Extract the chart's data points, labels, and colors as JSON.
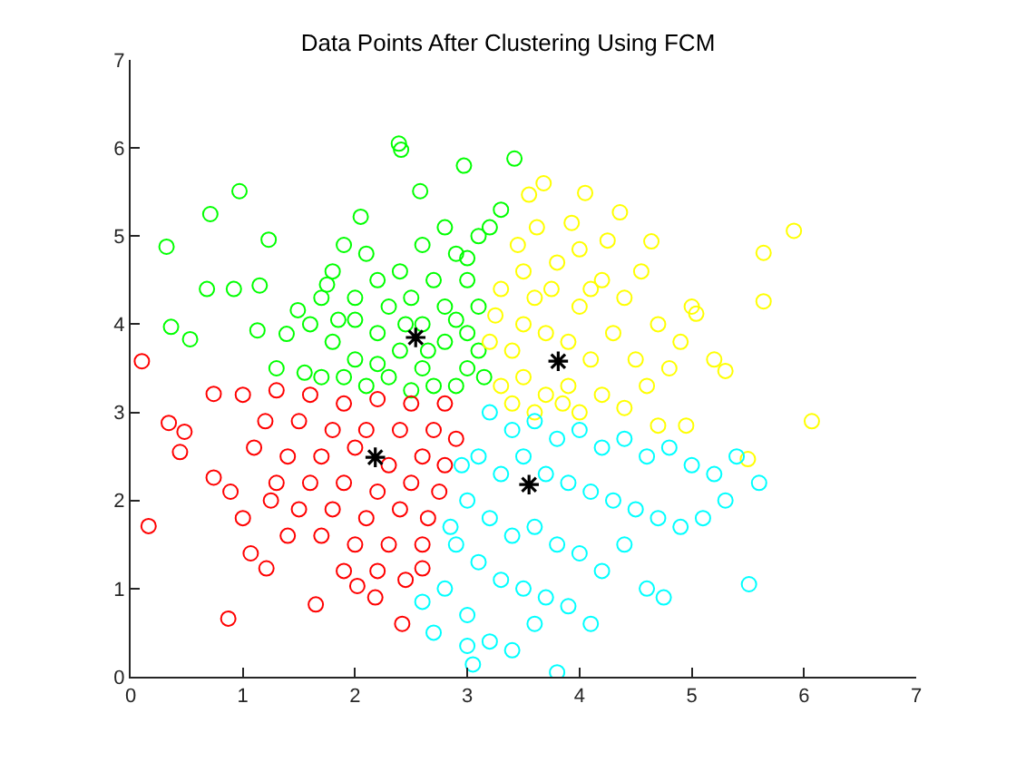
{
  "chart_data": {
    "type": "scatter",
    "title": "Data Points After Clustering Using FCM",
    "xlim": [
      0,
      7
    ],
    "ylim": [
      0,
      7
    ],
    "xticks": [
      0,
      1,
      2,
      3,
      4,
      5,
      6,
      7
    ],
    "yticks": [
      0,
      1,
      2,
      3,
      4,
      5,
      6,
      7
    ],
    "marker": "circle",
    "series": [
      {
        "color": "#00ff00",
        "x": [
          0.32,
          0.71,
          0.97,
          1.23,
          0.68,
          0.92,
          1.15,
          0.36,
          0.53,
          1.13,
          1.39,
          1.49,
          2.39,
          2.41,
          2.97,
          3.42,
          2.58,
          2.05,
          1.3,
          1.55,
          1.7,
          1.8,
          1.9,
          2.1,
          2.2,
          2.0,
          1.7,
          1.6,
          1.8,
          2.0,
          1.9,
          2.2,
          2.3,
          2.4,
          2.6,
          2.7,
          2.8,
          2.6,
          2.4,
          2.3,
          2.6,
          2.8,
          3.0,
          3.0,
          2.9,
          2.7,
          2.5,
          3.1,
          3.0,
          2.9,
          3.1,
          3.2,
          3.3,
          2.8,
          3.0,
          2.2,
          2.0,
          1.75,
          2.5,
          2.1,
          1.85,
          2.65,
          2.9,
          3.1,
          3.15,
          2.45
        ],
        "values": [
          4.88,
          5.25,
          5.51,
          4.96,
          4.4,
          4.4,
          4.44,
          3.97,
          3.83,
          3.93,
          3.89,
          4.16,
          6.05,
          5.98,
          5.8,
          5.88,
          5.51,
          5.22,
          3.5,
          3.45,
          3.4,
          4.6,
          4.9,
          4.8,
          4.5,
          4.3,
          4.3,
          4.0,
          3.8,
          3.6,
          3.4,
          3.9,
          4.2,
          4.6,
          4.9,
          4.5,
          4.2,
          4.0,
          3.7,
          3.4,
          3.5,
          3.8,
          3.9,
          3.5,
          3.3,
          3.3,
          3.25,
          4.2,
          4.5,
          4.8,
          5.0,
          5.1,
          5.3,
          5.1,
          4.75,
          3.55,
          4.05,
          4.45,
          4.3,
          3.3,
          4.05,
          3.7,
          4.05,
          3.7,
          3.4,
          4.0
        ]
      },
      {
        "color": "#ffff00",
        "x": [
          3.55,
          3.68,
          4.05,
          3.93,
          4.36,
          4.64,
          3.62,
          5.64,
          5.91,
          5.64,
          5.04,
          5.3,
          6.07,
          5.5,
          3.3,
          3.4,
          3.5,
          3.6,
          3.7,
          3.9,
          4.0,
          4.1,
          3.5,
          3.4,
          3.7,
          3.9,
          4.2,
          4.3,
          4.4,
          4.5,
          4.6,
          4.7,
          4.8,
          4.9,
          3.3,
          3.5,
          3.8,
          4.0,
          4.2,
          3.2,
          3.25,
          3.6,
          4.0,
          4.4,
          4.7,
          4.95,
          5.2,
          5.0,
          4.25,
          3.75,
          4.55,
          3.45,
          4.1,
          3.85
        ],
        "values": [
          5.47,
          5.6,
          5.49,
          5.15,
          5.27,
          4.94,
          5.1,
          4.81,
          5.06,
          4.26,
          4.12,
          3.47,
          2.9,
          2.47,
          3.3,
          3.7,
          4.0,
          4.3,
          3.9,
          3.8,
          4.2,
          3.6,
          3.4,
          3.1,
          3.2,
          3.3,
          3.2,
          3.9,
          4.3,
          3.6,
          3.3,
          4.0,
          3.5,
          3.8,
          4.4,
          4.6,
          4.7,
          4.85,
          4.5,
          3.8,
          4.1,
          3.0,
          3.0,
          3.05,
          2.85,
          2.85,
          3.6,
          4.2,
          4.95,
          4.4,
          4.6,
          4.9,
          4.4,
          3.1
        ]
      },
      {
        "color": "#00ffff",
        "x": [
          3.2,
          3.4,
          3.6,
          3.8,
          4.0,
          4.2,
          4.4,
          4.6,
          4.8,
          5.0,
          5.2,
          5.4,
          5.6,
          3.1,
          3.3,
          3.5,
          3.7,
          3.9,
          4.1,
          4.3,
          4.5,
          4.7,
          4.9,
          5.1,
          3.0,
          3.2,
          3.4,
          3.6,
          3.8,
          4.0,
          4.2,
          2.9,
          3.1,
          3.3,
          3.5,
          3.7,
          3.9,
          4.1,
          2.8,
          3.0,
          3.2,
          3.4,
          2.7,
          3.6,
          4.6,
          4.75,
          5.51,
          3.05,
          3.8,
          2.85,
          2.95,
          4.4,
          5.3,
          2.6,
          3.0
        ],
        "values": [
          3.0,
          2.8,
          2.9,
          2.7,
          2.8,
          2.6,
          2.7,
          2.5,
          2.6,
          2.4,
          2.3,
          2.5,
          2.2,
          2.5,
          2.3,
          2.5,
          2.3,
          2.2,
          2.1,
          2.0,
          1.9,
          1.8,
          1.7,
          1.8,
          2.0,
          1.8,
          1.6,
          1.7,
          1.5,
          1.4,
          1.2,
          1.5,
          1.3,
          1.1,
          1.0,
          0.9,
          0.8,
          0.6,
          1.0,
          0.7,
          0.4,
          0.3,
          0.5,
          0.6,
          1.0,
          0.9,
          1.05,
          0.14,
          0.05,
          1.7,
          2.4,
          1.5,
          2.0,
          0.85,
          0.35
        ]
      },
      {
        "color": "#ff0000",
        "x": [
          0.1,
          0.74,
          0.34,
          0.48,
          0.44,
          0.74,
          0.89,
          0.16,
          1.07,
          1.21,
          0.87,
          1.65,
          2.18,
          2.42,
          2.02,
          2.6,
          1.0,
          1.3,
          1.6,
          1.9,
          2.2,
          2.5,
          2.8,
          1.2,
          1.5,
          1.8,
          2.1,
          2.4,
          2.7,
          2.9,
          1.1,
          1.4,
          1.7,
          2.0,
          2.3,
          2.6,
          2.8,
          1.3,
          1.6,
          1.9,
          2.2,
          2.5,
          2.75,
          1.5,
          1.8,
          2.1,
          2.4,
          2.65,
          1.4,
          1.7,
          2.0,
          2.3,
          2.6,
          1.9,
          2.2,
          2.45,
          1.0,
          1.25
        ],
        "values": [
          3.58,
          3.21,
          2.88,
          2.78,
          2.55,
          2.26,
          2.1,
          1.71,
          1.4,
          1.23,
          0.66,
          0.82,
          0.9,
          0.6,
          1.03,
          1.23,
          3.2,
          3.25,
          3.2,
          3.1,
          3.15,
          3.1,
          3.1,
          2.9,
          2.9,
          2.8,
          2.8,
          2.8,
          2.8,
          2.7,
          2.6,
          2.5,
          2.5,
          2.6,
          2.4,
          2.5,
          2.4,
          2.2,
          2.2,
          2.2,
          2.1,
          2.2,
          2.1,
          1.9,
          1.9,
          1.8,
          1.9,
          1.8,
          1.6,
          1.6,
          1.5,
          1.5,
          1.5,
          1.2,
          1.2,
          1.1,
          1.8,
          2.0
        ]
      },
      {
        "color": "#000000",
        "marker": "cross",
        "x": [
          2.54,
          3.81,
          3.55,
          2.18
        ],
        "values": [
          3.85,
          3.58,
          2.18,
          2.49
        ]
      }
    ]
  }
}
